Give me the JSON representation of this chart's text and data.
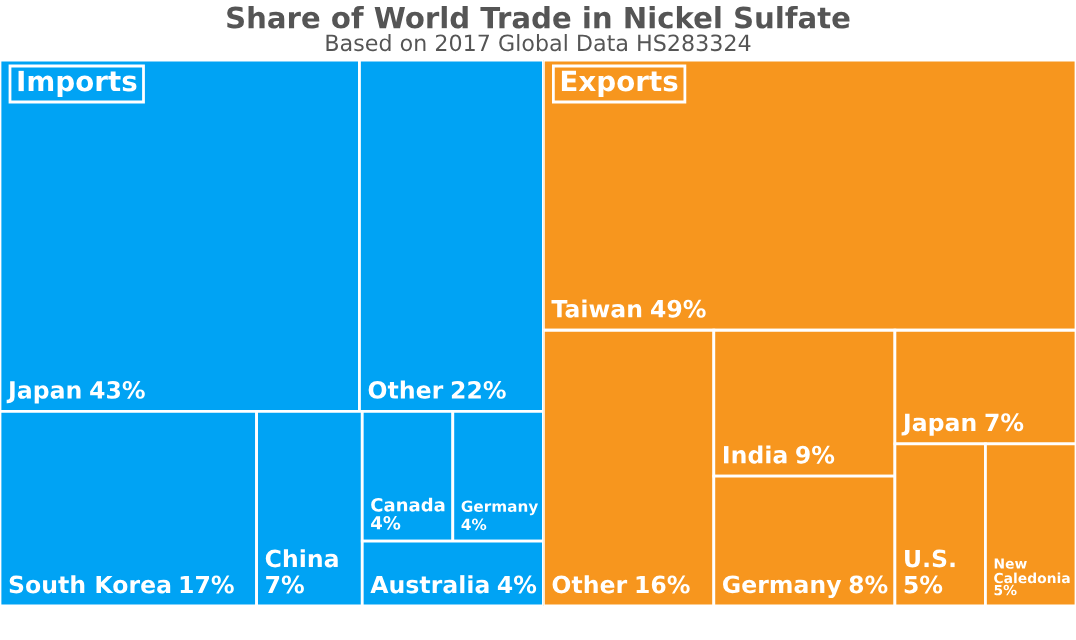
{
  "chart_data": [
    {
      "type": "other",
      "title": "Share of World Trade in Nickel Sulfate",
      "subtitle": "Based on 2017 Global Data HS283324",
      "annotations": [
        "Imports"
      ],
      "categories": [
        "Japan",
        "Other",
        "South Korea",
        "China",
        "Canada",
        "Germany",
        "Australia"
      ],
      "values": [
        43,
        22,
        17,
        7,
        4,
        4,
        4
      ],
      "value_labels": [
        "43%",
        "22%",
        "17%",
        "7%",
        "4%",
        "4%",
        "4%"
      ],
      "colors": [
        "#00a3f4",
        "#00a3f4",
        "#00a3f4",
        "#00a3f4",
        "#00a3f4",
        "#00a3f4",
        "#00a3f4"
      ]
    },
    {
      "type": "other",
      "annotations": [
        "Exports"
      ],
      "categories": [
        "Taiwan",
        "Other",
        "India",
        "Germany",
        "Japan",
        "U.S.",
        "New Caledonia"
      ],
      "values": [
        49,
        16,
        9,
        8,
        7,
        5,
        5
      ],
      "value_labels": [
        "49%",
        "16%",
        "9%",
        "8%",
        "7%",
        "5%",
        "5%"
      ],
      "colors": [
        "#f7961e",
        "#f7961e",
        "#f7961e",
        "#f7961e",
        "#f7961e",
        "#f7961e",
        "#f7961e"
      ]
    }
  ]
}
